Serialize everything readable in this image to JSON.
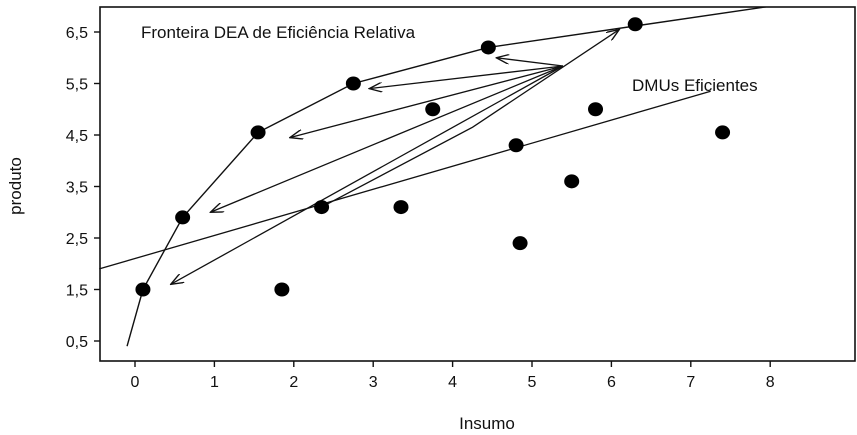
{
  "chart_data": {
    "type": "scatter",
    "xlabel": "Insumo",
    "ylabel": "produto",
    "xlim": [
      0,
      8
    ],
    "ylim": [
      0.5,
      6.5
    ],
    "x_ticks": [
      "0",
      "1",
      "2",
      "3",
      "4",
      "5",
      "6",
      "7",
      "8"
    ],
    "y_ticks": [
      "0,5",
      "1,5",
      "2,5",
      "3,5",
      "4,5",
      "5,5",
      "6,5"
    ],
    "points": [
      {
        "x": 0.1,
        "y": 1.5
      },
      {
        "x": 0.6,
        "y": 2.9
      },
      {
        "x": 1.55,
        "y": 4.55
      },
      {
        "x": 2.75,
        "y": 5.5
      },
      {
        "x": 4.45,
        "y": 6.2
      },
      {
        "x": 6.3,
        "y": 6.65
      },
      {
        "x": 1.85,
        "y": 1.5
      },
      {
        "x": 2.35,
        "y": 3.1
      },
      {
        "x": 3.35,
        "y": 3.1
      },
      {
        "x": 3.75,
        "y": 5.0
      },
      {
        "x": 4.8,
        "y": 4.3
      },
      {
        "x": 4.85,
        "y": 2.4
      },
      {
        "x": 5.5,
        "y": 3.6
      },
      {
        "x": 5.8,
        "y": 5.0
      },
      {
        "x": 7.4,
        "y": 4.55
      }
    ],
    "frontier": [
      [
        -0.1,
        0.4
      ],
      [
        0.1,
        1.5
      ],
      [
        0.6,
        2.9
      ],
      [
        1.55,
        4.55
      ],
      [
        2.75,
        5.5
      ],
      [
        4.45,
        6.2
      ],
      [
        8.0,
        7.0
      ]
    ],
    "trend_line": [
      [
        -0.45,
        1.9
      ],
      [
        7.25,
        5.35
      ]
    ],
    "arrows_from_label": [
      [
        4.55,
        6.0
      ],
      [
        2.95,
        5.4
      ],
      [
        1.95,
        4.45
      ],
      [
        0.95,
        3.0
      ],
      [
        0.45,
        1.6
      ]
    ],
    "arrow_to_top": {
      "from": [
        2.35,
        3.1
      ],
      "via": [
        4.25,
        4.65
      ],
      "to": [
        6.1,
        6.55
      ]
    },
    "annotations": [
      {
        "text": "Fronteira DEA de Eficiência Relativa"
      },
      {
        "text": "DMUs Eficientes"
      }
    ],
    "grid": false
  }
}
